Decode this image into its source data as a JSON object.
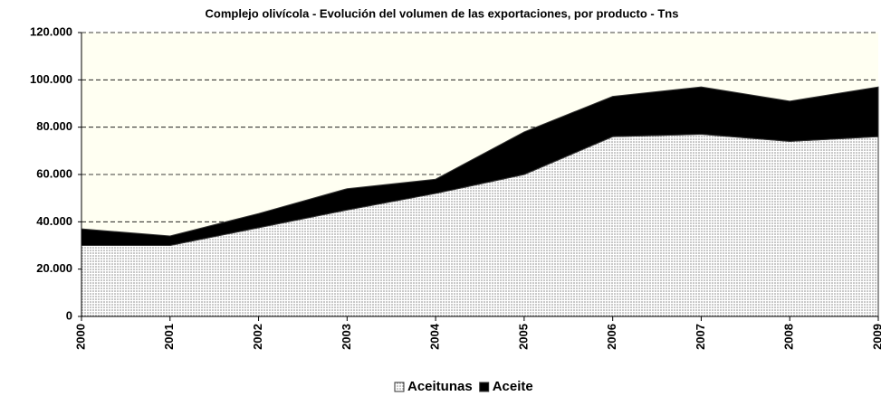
{
  "chart_data": {
    "type": "stacked_area",
    "title": "Complejo olivícola - Evolución del volumen de las exportaciones, por producto - Tns",
    "categories": [
      "2000",
      "2001",
      "2002",
      "2003",
      "2004",
      "2005",
      "2006",
      "2007",
      "2008",
      "2009"
    ],
    "series": [
      {
        "name": "Aceitunas",
        "color": "#808080",
        "pattern": "dots",
        "values": [
          30000,
          30000,
          37500,
          45000,
          52000,
          60000,
          76000,
          77000,
          74000,
          76000
        ]
      },
      {
        "name": "Aceite",
        "color": "#000000",
        "values": [
          7000,
          4000,
          6000,
          9000,
          6000,
          18000,
          17000,
          20000,
          17000,
          21000
        ]
      }
    ],
    "ylim": [
      0,
      120000
    ],
    "yticks": [
      0,
      {
        "value": 20000,
        "label": "20.000"
      },
      {
        "value": 40000,
        "label": "40.000"
      },
      {
        "value": 60000,
        "label": "60.000"
      },
      {
        "value": 80000,
        "label": "80.000"
      },
      {
        "value": 100000,
        "label": "100.000"
      },
      {
        "value": 120000,
        "label": "120.000"
      }
    ],
    "grid": true,
    "legend": "bottom"
  }
}
